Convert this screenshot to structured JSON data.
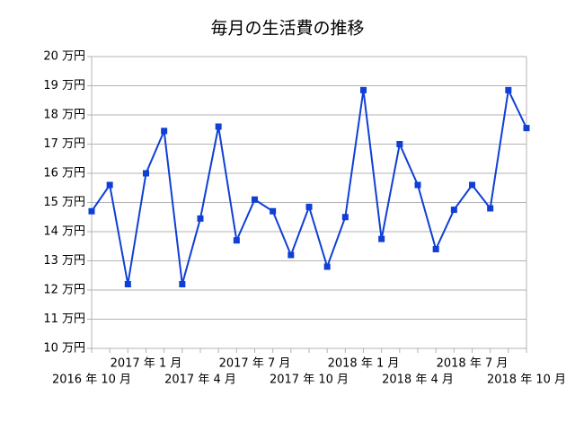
{
  "chart_data": {
    "type": "line",
    "title": "毎月の生活費の推移",
    "categories": [
      "2016 年 10 月",
      null,
      null,
      "2017 年 1 月",
      null,
      null,
      "2017 年 4 月",
      null,
      null,
      "2017 年 7 月",
      null,
      null,
      "2017 年 10 月",
      null,
      null,
      "2018 年 1 月",
      null,
      null,
      "2018 年 4 月",
      null,
      null,
      "2018 年 7 月",
      null,
      null,
      "2018 年 10 月"
    ],
    "values": [
      14.7,
      15.6,
      12.2,
      16.0,
      17.45,
      12.2,
      14.45,
      17.6,
      13.7,
      15.1,
      14.7,
      13.2,
      14.85,
      12.8,
      14.5,
      18.85,
      13.75,
      17.0,
      15.6,
      13.4,
      14.75,
      15.6,
      14.8,
      18.85,
      17.55
    ],
    "color": "#0f3fd6",
    "ylim": [
      10,
      20
    ],
    "yticks": [
      {
        "value": 10,
        "label": "10 万円"
      },
      {
        "value": 11,
        "label": "11 万円"
      },
      {
        "value": 12,
        "label": "12 万円"
      },
      {
        "value": 13,
        "label": "13 万円"
      },
      {
        "value": 14,
        "label": "14 万円"
      },
      {
        "value": 15,
        "label": "15 万円"
      },
      {
        "value": 16,
        "label": "16 万円"
      },
      {
        "value": 17,
        "label": "17 万円"
      },
      {
        "value": 18,
        "label": "18 万円"
      },
      {
        "value": 19,
        "label": "19 万円"
      },
      {
        "value": 20,
        "label": "20 万円"
      }
    ],
    "grid": true
  }
}
